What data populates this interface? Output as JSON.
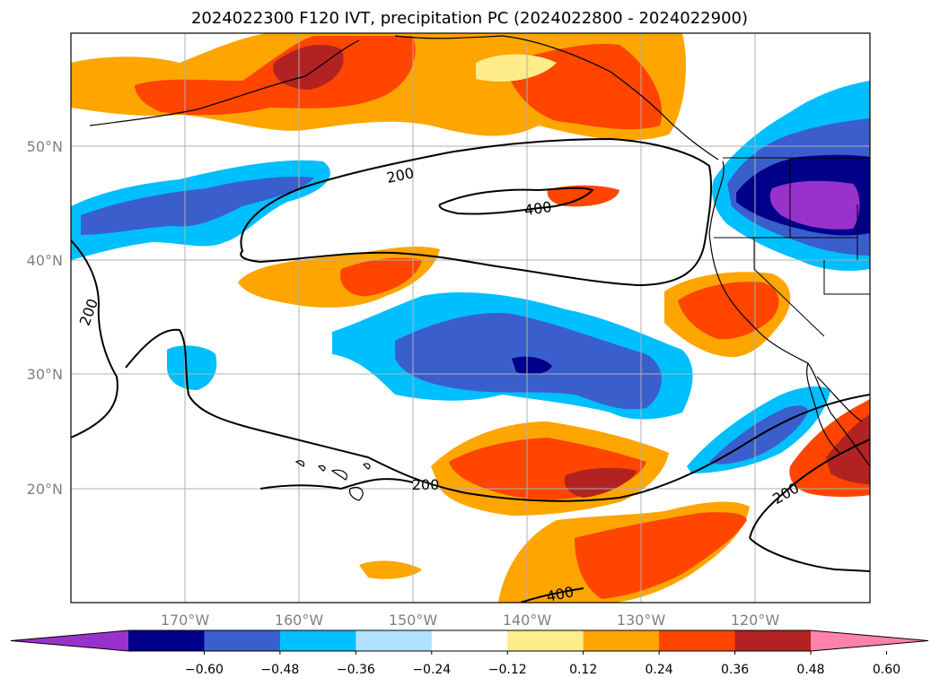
{
  "title": "2024022300 F120 IVT, precipitation PC (2024022800 - 2024022900)",
  "map": {
    "lon_labels": [
      "170°W",
      "160°W",
      "150°W",
      "140°W",
      "130°W",
      "120°W"
    ],
    "lat_labels": [
      "50°N",
      "40°N",
      "30°N",
      "20°N"
    ],
    "gridlines": true,
    "ivt_contour_labels": [
      "200",
      "400",
      "200",
      "200",
      "200",
      "400"
    ]
  },
  "colorbar": {
    "ticks": [
      "−0.60",
      "−0.48",
      "−0.36",
      "−0.24",
      "−0.12",
      "0.12",
      "0.24",
      "0.36",
      "0.48",
      "0.60"
    ],
    "colors": [
      "#9932cc",
      "#00008b",
      "#3a5fcd",
      "#00bfff",
      "#b0e2ff",
      "#ffffff",
      "#ffec8b",
      "#ffa500",
      "#ff4500",
      "#b22222",
      "#ff82ab"
    ]
  }
}
